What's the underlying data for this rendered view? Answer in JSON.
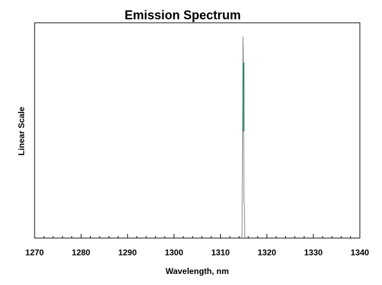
{
  "chart_data": {
    "type": "line",
    "title": "Emission Spectrum",
    "xlabel": "Wavelength, nm",
    "ylabel": "Linear Scale",
    "xlim": [
      1270,
      1340
    ],
    "x_ticks": [
      1270,
      1280,
      1290,
      1300,
      1310,
      1320,
      1330,
      1340
    ],
    "x_minor_step": 2,
    "ylim": [
      0,
      1.0
    ],
    "y_ticks_shown": false,
    "grid": false,
    "legend": "none",
    "series": [
      {
        "color": "#808080",
        "x": [
          1314.55,
          1314.65,
          1314.75,
          1314.85,
          1314.95,
          1315.05,
          1315.15,
          1315.25,
          1315.35
        ],
        "y": [
          0.0,
          0.01,
          0.46,
          1.0,
          0.87,
          0.18,
          0.17,
          0.01,
          0.0
        ]
      }
    ],
    "highlight": {
      "color": "#1f8a6a",
      "x": [
        1315.0,
        1315.0
      ],
      "y": [
        0.53,
        0.87
      ]
    }
  }
}
